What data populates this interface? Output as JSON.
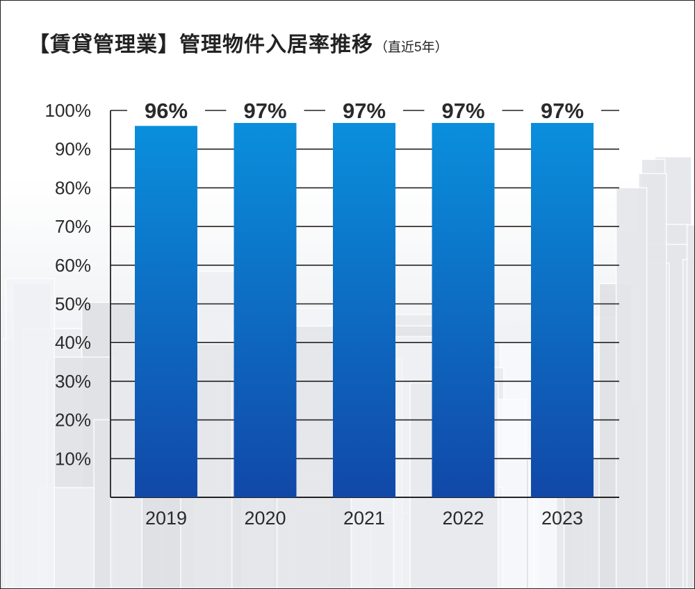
{
  "title": "【賃貸管理業】管理物件入居率推移",
  "subtitle": "（直近5年）",
  "colors": {
    "bar_top": "#0a8fdc",
    "bar_bottom": "#1148a8",
    "gridline": "#222222",
    "text": "#2a2a2a",
    "background": "#ffffff"
  },
  "chart_data": {
    "type": "bar",
    "title": "【賃貸管理業】管理物件入居率推移",
    "subtitle": "（直近5年）",
    "categories": [
      "2019",
      "2020",
      "2021",
      "2022",
      "2023"
    ],
    "values": [
      96,
      97,
      97,
      97,
      97
    ],
    "value_labels": [
      "96%",
      "97%",
      "97%",
      "97%",
      "97%"
    ],
    "ylim": [
      0,
      100
    ],
    "yticks": [
      "100%",
      "90%",
      "80%",
      "70%",
      "60%",
      "50%",
      "40%",
      "30%",
      "20%",
      "10%"
    ],
    "xlabel": "",
    "ylabel": "",
    "grid": true,
    "legend": "none"
  }
}
